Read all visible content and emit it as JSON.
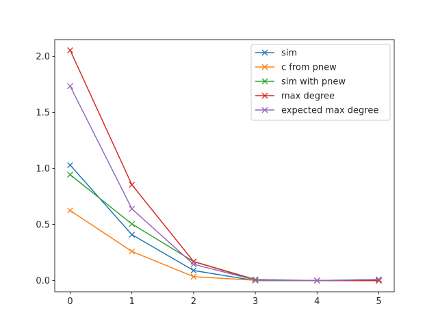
{
  "chart_data": {
    "type": "line",
    "x": [
      0,
      1,
      2,
      3,
      4,
      5
    ],
    "xlim": [
      -0.25,
      5.25
    ],
    "ylim": [
      -0.1,
      2.15
    ],
    "xticks": [
      0,
      1,
      2,
      3,
      4,
      5
    ],
    "yticks": [
      0.0,
      0.5,
      1.0,
      1.5,
      2.0
    ],
    "xtick_labels": [
      "0",
      "1",
      "2",
      "3",
      "4",
      "5"
    ],
    "ytick_labels": [
      "0.0",
      "0.5",
      "1.0",
      "1.5",
      "2.0"
    ],
    "grid": false,
    "legend_position": "top-right",
    "marker": "x",
    "series": [
      {
        "name": "sim",
        "color": "#1f77b4",
        "values": [
          1.03,
          0.41,
          0.09,
          0.0,
          0.0,
          0.01
        ]
      },
      {
        "name": "c from pnew",
        "color": "#ff7f0e",
        "values": [
          0.625,
          0.26,
          0.035,
          0.003,
          0.0,
          0.0
        ]
      },
      {
        "name": "sim with pnew",
        "color": "#2ca02c",
        "values": [
          0.945,
          0.505,
          0.17,
          0.01,
          0.0,
          0.0
        ]
      },
      {
        "name": "max degree",
        "color": "#d62728",
        "values": [
          2.055,
          0.855,
          0.17,
          0.005,
          0.0,
          0.0
        ]
      },
      {
        "name": "expected max degree",
        "color": "#9467bd",
        "values": [
          1.735,
          0.64,
          0.145,
          0.005,
          0.0,
          0.01
        ]
      }
    ]
  }
}
